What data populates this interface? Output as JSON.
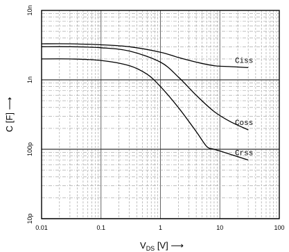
{
  "chart_data": {
    "type": "line",
    "title": "",
    "xlabel": {
      "main": "V",
      "sub": "DS",
      "unit": "[V]",
      "arrow": "⟶"
    },
    "ylabel": {
      "text": "C [F]",
      "arrow": "⟶"
    },
    "xscale": "log",
    "yscale": "log",
    "xlim": [
      0.01,
      100
    ],
    "ylim": [
      1e-11,
      1e-08
    ],
    "grid": true,
    "x_ticks": [
      {
        "value": 0.01,
        "label": "0.01"
      },
      {
        "value": 0.1,
        "label": "0.1"
      },
      {
        "value": 1,
        "label": "1"
      },
      {
        "value": 10,
        "label": "10"
      },
      {
        "value": 100,
        "label": "100"
      }
    ],
    "y_ticks": [
      {
        "value": 1e-11,
        "label": "10p"
      },
      {
        "value": 1e-10,
        "label": "100p"
      },
      {
        "value": 1e-09,
        "label": "1n"
      },
      {
        "value": 1e-08,
        "label": "10n"
      }
    ],
    "series": [
      {
        "name": "Ciss",
        "x": [
          0.01,
          0.03,
          0.1,
          0.3,
          1,
          2,
          4,
          8,
          15,
          30
        ],
        "y": [
          3.3e-09,
          3.3e-09,
          3.2e-09,
          3e-09,
          2.5e-09,
          2.1e-09,
          1.8e-09,
          1.6e-09,
          1.55e-09,
          1.5e-09
        ]
      },
      {
        "name": "Coss",
        "x": [
          0.01,
          0.03,
          0.1,
          0.3,
          1,
          2,
          4,
          8,
          15,
          30
        ],
        "y": [
          3e-09,
          3e-09,
          2.9e-09,
          2.6e-09,
          1.8e-09,
          1.1e-09,
          6e-10,
          3.5e-10,
          2.5e-10,
          1.9e-10
        ]
      },
      {
        "name": "Crss",
        "x": [
          0.01,
          0.03,
          0.1,
          0.3,
          0.6,
          1,
          2,
          4,
          6,
          8,
          12,
          30
        ],
        "y": [
          2e-09,
          2e-09,
          1.9e-09,
          1.6e-09,
          1.2e-09,
          8e-10,
          4e-10,
          1.8e-10,
          1.1e-10,
          1e-10,
          9e-11,
          7e-11
        ]
      }
    ]
  }
}
